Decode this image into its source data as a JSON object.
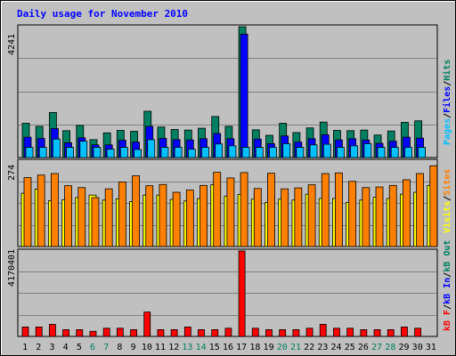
{
  "chart_data": [
    {
      "type": "bar",
      "panel": "top",
      "title": "Daily usage for November 2010",
      "categories": [
        "1",
        "2",
        "3",
        "4",
        "5",
        "6",
        "7",
        "8",
        "9",
        "10",
        "11",
        "12",
        "13",
        "14",
        "15",
        "16",
        "17",
        "18",
        "19",
        "20",
        "21",
        "22",
        "23",
        "24",
        "25",
        "26",
        "27",
        "28",
        "29",
        "30",
        "31"
      ],
      "ymax_label": "4241",
      "ylim": [
        0,
        4241
      ],
      "y_axis_labels": [
        {
          "text": "Pages",
          "color": "#00c0ff"
        },
        {
          "text": "/",
          "color": "#000000"
        },
        {
          "text": "Files",
          "color": "#0000ff"
        },
        {
          "text": "/",
          "color": "#000000"
        },
        {
          "text": "Hits",
          "color": "#008060"
        }
      ],
      "series": [
        {
          "name": "Hits",
          "color": "#008060",
          "values": [
            1110,
            1010,
            1460,
            870,
            1040,
            580,
            800,
            880,
            850,
            1500,
            990,
            910,
            890,
            950,
            1330,
            1010,
            4241,
            900,
            720,
            1110,
            810,
            960,
            1150,
            880,
            870,
            890,
            730,
            860,
            1140,
            1190,
            0
          ]
        },
        {
          "name": "Files",
          "color": "#0000ff",
          "values": [
            660,
            620,
            940,
            480,
            640,
            410,
            410,
            560,
            500,
            1010,
            620,
            580,
            570,
            610,
            780,
            610,
            4000,
            600,
            450,
            700,
            500,
            610,
            740,
            570,
            610,
            570,
            460,
            530,
            660,
            630,
            0
          ]
        },
        {
          "name": "Pages",
          "color": "#00c0ff",
          "values": [
            330,
            330,
            600,
            330,
            530,
            330,
            270,
            330,
            260,
            580,
            330,
            330,
            270,
            330,
            440,
            380,
            330,
            330,
            330,
            450,
            330,
            410,
            430,
            330,
            380,
            450,
            330,
            330,
            330,
            330,
            0
          ]
        }
      ]
    },
    {
      "type": "bar",
      "panel": "middle",
      "categories": [
        "1",
        "2",
        "3",
        "4",
        "5",
        "6",
        "7",
        "8",
        "9",
        "10",
        "11",
        "12",
        "13",
        "14",
        "15",
        "16",
        "17",
        "18",
        "19",
        "20",
        "21",
        "22",
        "23",
        "24",
        "25",
        "26",
        "27",
        "28",
        "29",
        "30",
        "31"
      ],
      "ymax_label": "274",
      "ylim": [
        0,
        274
      ],
      "y_axis_labels": [
        {
          "text": "Visits",
          "color": "#ffff00"
        },
        {
          "text": "/",
          "color": "#000000"
        },
        {
          "text": "Sites",
          "color": "#ff8000"
        }
      ],
      "series": [
        {
          "name": "Sites",
          "color": "#ff8000",
          "values": [
            221,
            229,
            234,
            195,
            189,
            157,
            185,
            207,
            227,
            195,
            199,
            174,
            181,
            196,
            238,
            220,
            237,
            186,
            235,
            185,
            188,
            198,
            234,
            236,
            209,
            189,
            191,
            196,
            214,
            234,
            259
          ]
        },
        {
          "name": "Visits",
          "color": "#ffff00",
          "values": [
            171,
            184,
            147,
            150,
            157,
            165,
            149,
            153,
            144,
            165,
            165,
            151,
            146,
            154,
            198,
            162,
            167,
            152,
            141,
            152,
            149,
            168,
            154,
            154,
            141,
            149,
            158,
            154,
            168,
            174,
            196
          ]
        }
      ]
    },
    {
      "type": "bar",
      "panel": "bottom",
      "categories": [
        "1",
        "2",
        "3",
        "4",
        "5",
        "6",
        "7",
        "8",
        "9",
        "10",
        "11",
        "12",
        "13",
        "14",
        "15",
        "16",
        "17",
        "18",
        "19",
        "20",
        "21",
        "22",
        "23",
        "24",
        "25",
        "26",
        "27",
        "28",
        "29",
        "30",
        "31"
      ],
      "ymax_label": "4170401",
      "ylim": [
        0,
        4170401
      ],
      "y_axis_labels": [
        {
          "text": "kB F",
          "color": "#ff0000"
        },
        {
          "text": "/",
          "color": "#000000"
        },
        {
          "text": "kB In",
          "color": "#0000ff"
        },
        {
          "text": "/",
          "color": "#000000"
        },
        {
          "text": "kB Out",
          "color": "#008060"
        }
      ],
      "series": [
        {
          "name": "kB F",
          "color": "#ff0000",
          "values": [
            460000,
            460000,
            590000,
            330000,
            330000,
            250000,
            400000,
            400000,
            330000,
            1190000,
            330000,
            330000,
            460000,
            330000,
            330000,
            400000,
            4170401,
            400000,
            330000,
            330000,
            330000,
            400000,
            590000,
            400000,
            400000,
            330000,
            330000,
            330000,
            460000,
            400000,
            0
          ]
        }
      ]
    }
  ],
  "x_tick_colors": [
    "#000000",
    "#000000",
    "#000000",
    "#000000",
    "#000000",
    "#008060",
    "#008060",
    "#000000",
    "#000000",
    "#000000",
    "#000000",
    "#000000",
    "#008060",
    "#008060",
    "#000000",
    "#000000",
    "#000000",
    "#000000",
    "#000000",
    "#008060",
    "#008060",
    "#000000",
    "#000000",
    "#000000",
    "#000000",
    "#000000",
    "#008060",
    "#008060",
    "#000000",
    "#000000",
    "#000000"
  ],
  "colors": {
    "background": "#c0c0c0",
    "plot_background": "#c0c0c0",
    "title": "#0000ff",
    "grid": "#808080",
    "border_dark": "#404040",
    "border_light": "#ffffff"
  }
}
